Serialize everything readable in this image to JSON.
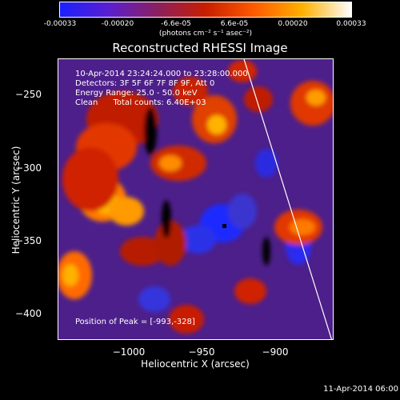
{
  "colorbar": {
    "ticks": [
      "-0.00033",
      "-0.00020",
      "-6.6e-05",
      "6.6e-05",
      "0.00020",
      "0.00033"
    ],
    "unit_label": "(photons cm⁻² s⁻¹ asec⁻²)",
    "colors": [
      "#1a20ff",
      "#5a1fd0",
      "#8a2060",
      "#c81d00",
      "#ff5a00",
      "#ffb000",
      "#ffffff"
    ]
  },
  "plot": {
    "title": "Reconstructed RHESSI Image",
    "info": {
      "time": "10-Apr-2014 23:24:24.000 to 23:28:00.000",
      "detectors": "Detectors: 3F 5F 6F 7F 8F 9F, Att 0",
      "energy": "Energy Range: 25.0 - 50.0 keV",
      "clean": "Clean      Total counts: 6.40E+03"
    },
    "peak": "Position of Peak = [-993,-328]",
    "xlabel": "Heliocentric X (arcsec)",
    "ylabel": "Heliocentric Y (arcsec)",
    "xticks": [
      "−1000",
      "−950",
      "−900"
    ],
    "yticks": [
      "−250",
      "−300",
      "−350",
      "−400"
    ]
  },
  "footer": {
    "timestamp": "11-Apr-2014 06:00"
  }
}
